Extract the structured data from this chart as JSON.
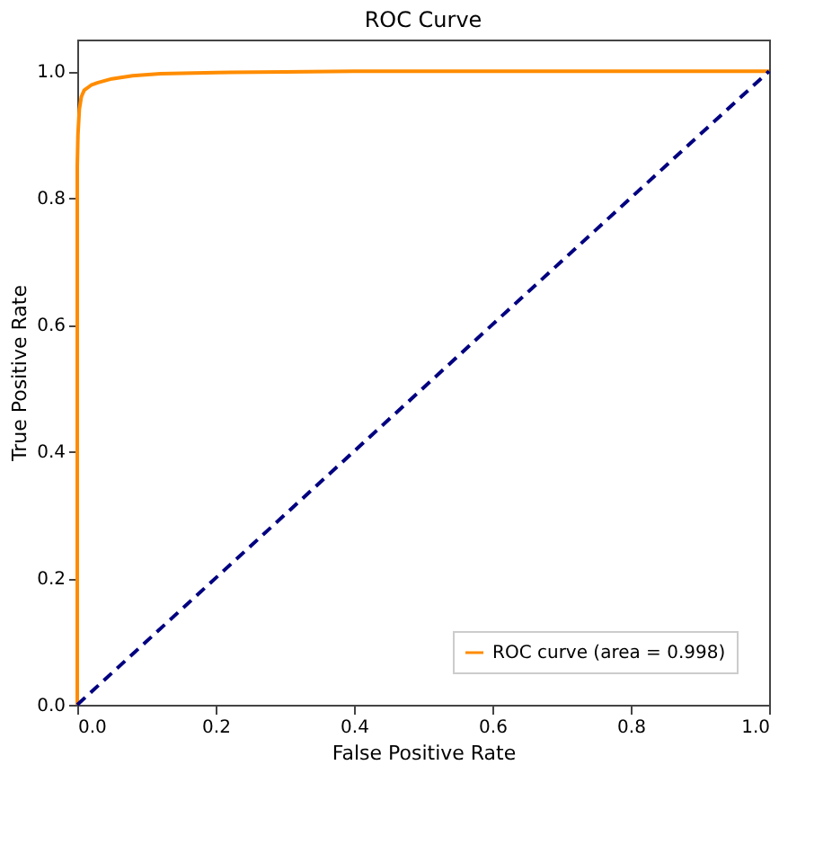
{
  "chart_data": {
    "type": "line",
    "title": "ROC Curve",
    "xlabel": "False Positive Rate",
    "ylabel": "True Positive Rate",
    "xlim": [
      0,
      1.0
    ],
    "ylim": [
      0,
      1.05
    ],
    "xticks": [
      {
        "value": 0,
        "label": "0.0"
      },
      0.2,
      0.4,
      0.6,
      0.8,
      {
        "value": 1,
        "label": "1.0"
      }
    ],
    "yticks": [
      {
        "value": 0,
        "label": "0.0"
      },
      0.2,
      0.4,
      0.6,
      0.8,
      {
        "value": 1,
        "label": "1.0"
      }
    ],
    "grid": false,
    "legend": "bottom right",
    "series": [
      {
        "name": "ROC curve (area = 0.998)",
        "color": "#ff8c00",
        "line_style": "solid",
        "x": [
          0,
          0,
          0.001,
          0.003,
          0.006,
          0.01,
          0.02,
          0.03,
          0.05,
          0.08,
          0.12,
          0.2,
          0.3,
          0.4,
          0.6,
          1.0
        ],
        "values": [
          0,
          0.85,
          0.9,
          0.94,
          0.96,
          0.97,
          0.978,
          0.982,
          0.988,
          0.993,
          0.996,
          0.998,
          0.999,
          1.0,
          1.0,
          1.0
        ]
      },
      {
        "color": "#000080",
        "line_style": "dashed",
        "x": [
          0,
          1.0
        ],
        "values": [
          0,
          1.0
        ]
      }
    ]
  }
}
